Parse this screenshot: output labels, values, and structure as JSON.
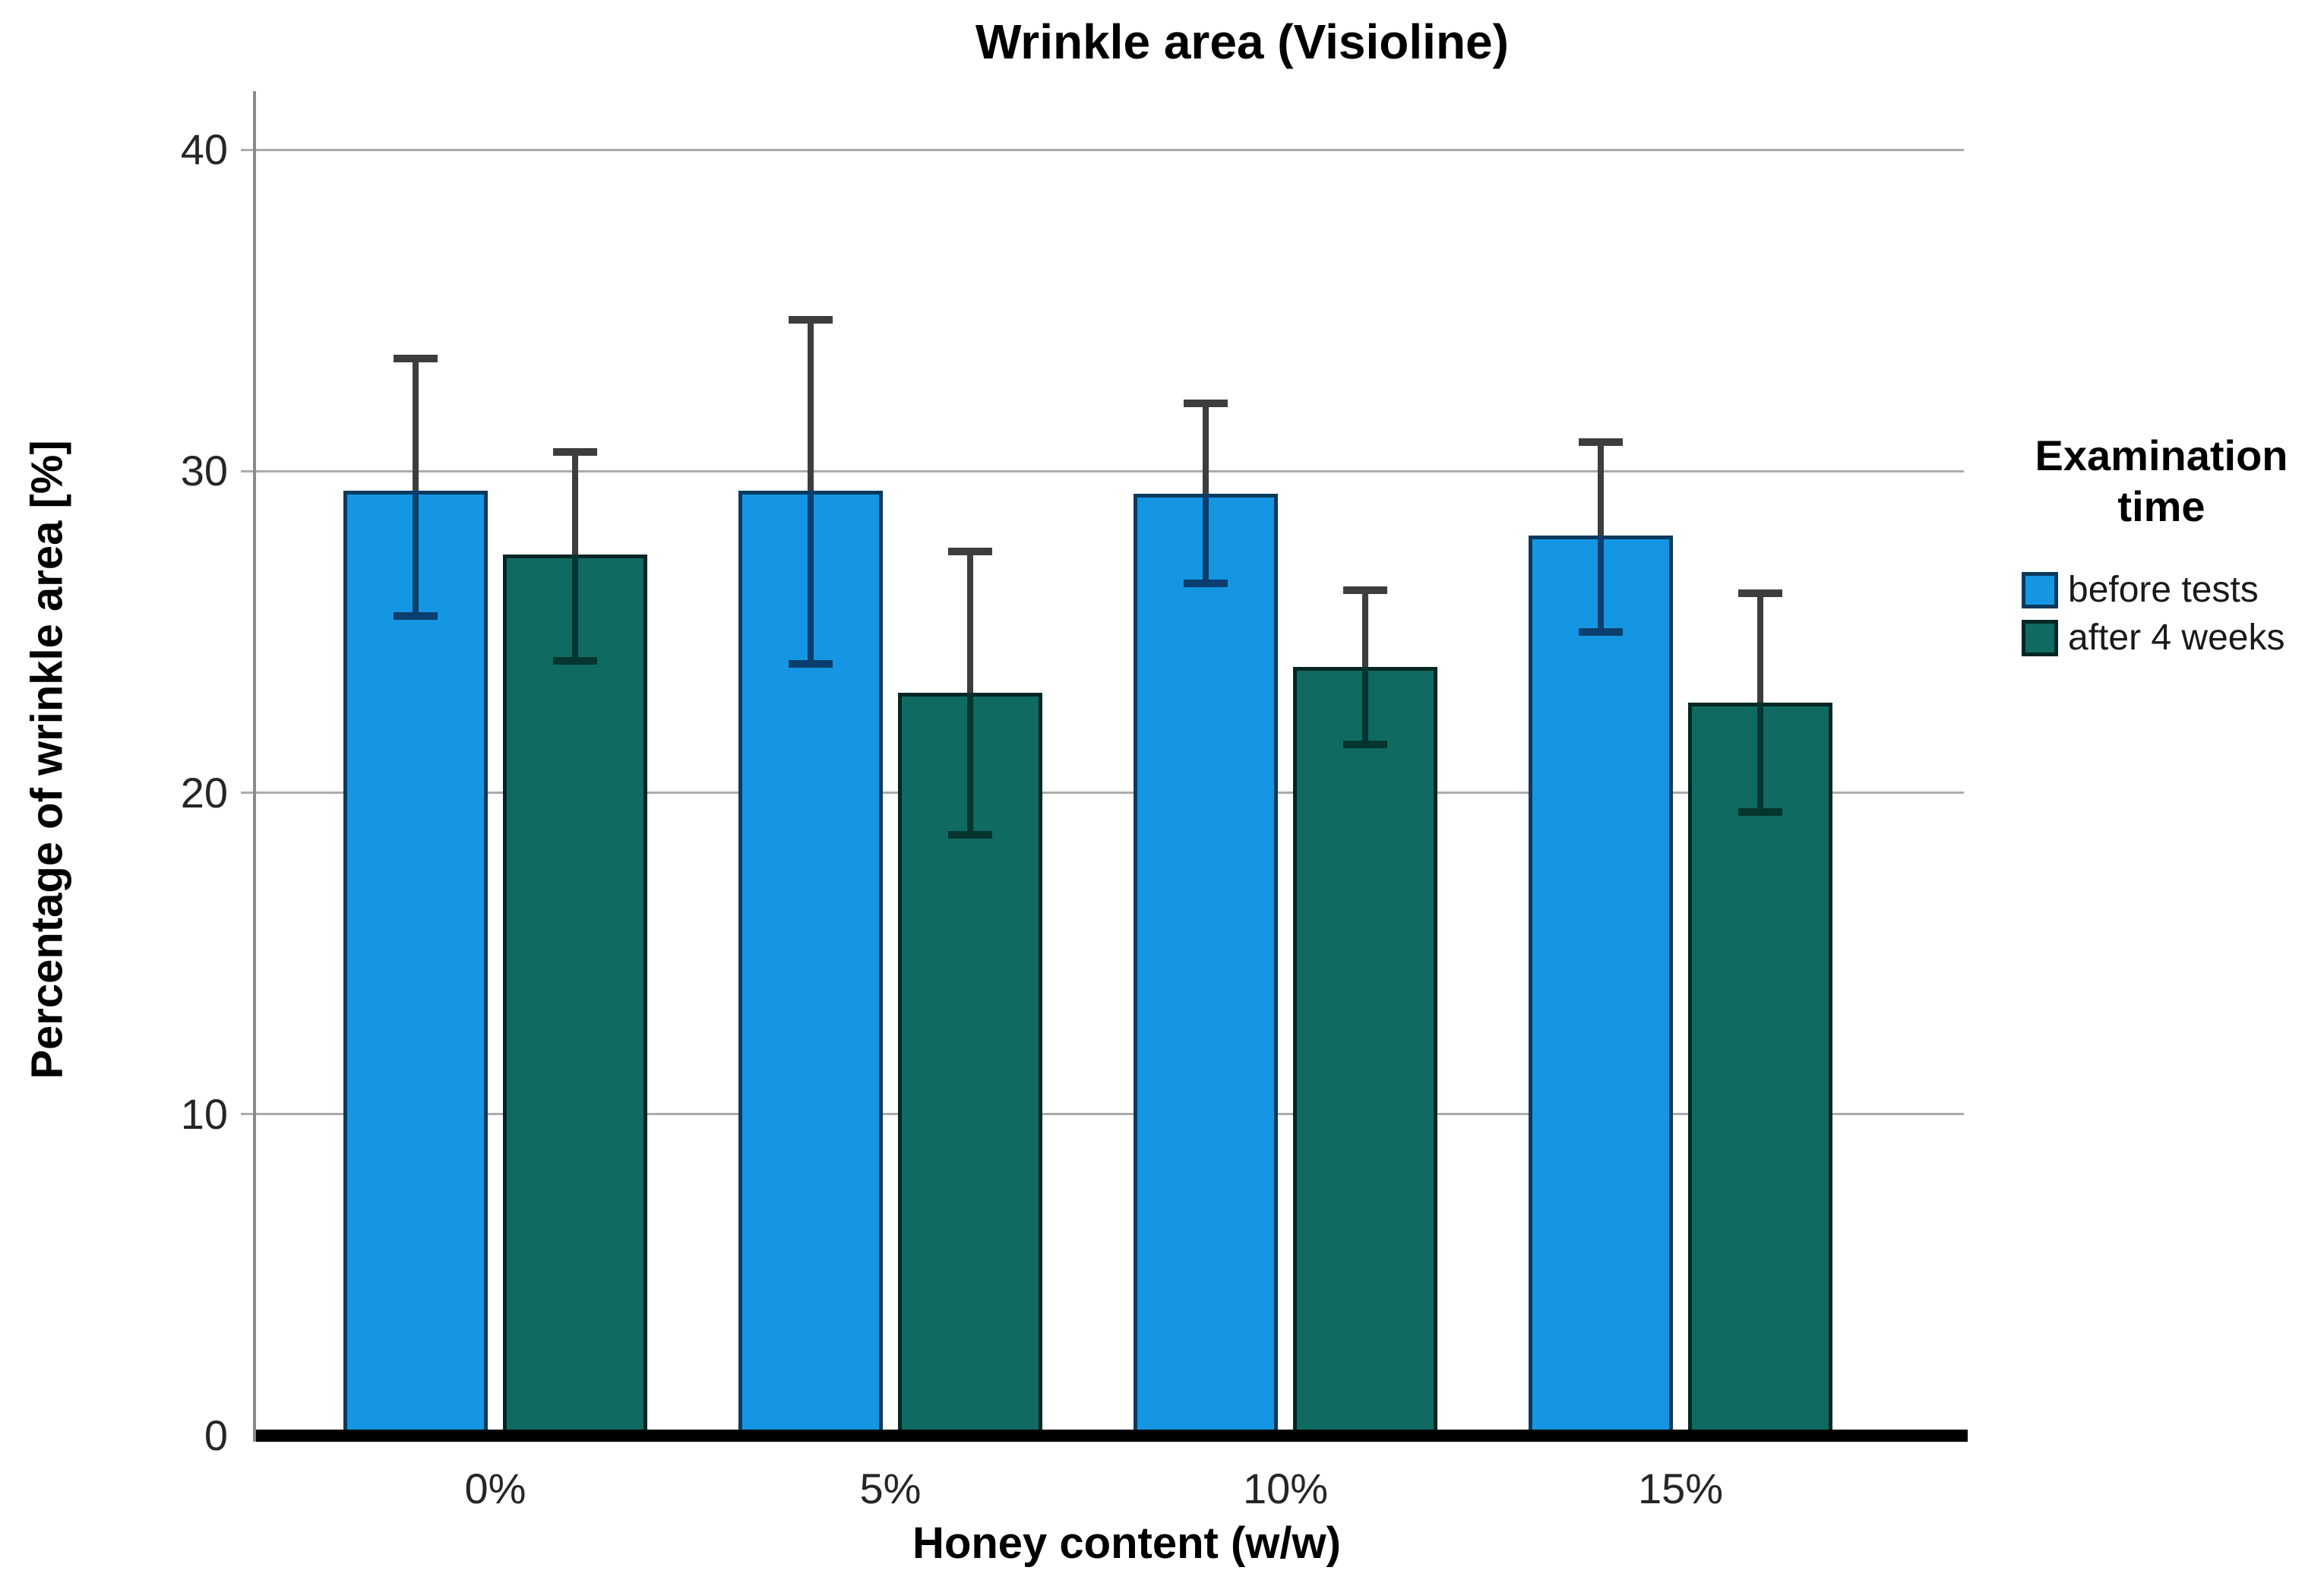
{
  "title": "Wrinkle area (Visioline)",
  "y_axis": {
    "label": "Percentage of wrinkle area [%]"
  },
  "x_axis": {
    "label": "Honey content (w/w)"
  },
  "legend": {
    "title_lines": [
      "Examination",
      "time"
    ],
    "items": [
      {
        "label": "before tests",
        "color": "#1496E3"
      },
      {
        "label": "after 4 weeks",
        "color": "#0F6B62"
      }
    ]
  },
  "colors": {
    "before_fill": "#1496E3",
    "before_border": "#0C3A5C",
    "before_inner_whisker": "#0B3E6E",
    "after_fill": "#0F6B62",
    "after_border": "#032723",
    "after_inner_whisker": "#04352F",
    "outer_whisker": "#3d3d3d",
    "gridline": "#ababab",
    "axis_line": "#8a8a8a",
    "baseline": "#000000"
  },
  "chart_data": {
    "type": "bar",
    "title": "Wrinkle area (Visioline)",
    "xlabel": "Honey content (w/w)",
    "ylabel": "Percentage of wrinkle area [%]",
    "ylim": [
      0,
      42
    ],
    "yticks": [
      0,
      10,
      20,
      30,
      40
    ],
    "grid": true,
    "legend_position": "right",
    "legend_title": "Examination time",
    "categories": [
      "0%",
      "5%",
      "10%",
      "15%"
    ],
    "series": [
      {
        "name": "before tests",
        "color": "#1496E3",
        "values": [
          29.4,
          29.4,
          29.3,
          28.0
        ],
        "error_high": [
          33.5,
          34.7,
          32.1,
          30.9
        ],
        "error_low": [
          25.5,
          24.0,
          26.5,
          25.0
        ]
      },
      {
        "name": "after 4 weeks",
        "color": "#0F6B62",
        "values": [
          27.4,
          23.1,
          23.9,
          22.8
        ],
        "error_high": [
          30.6,
          27.5,
          26.3,
          26.2
        ],
        "error_low": [
          24.1,
          18.7,
          21.5,
          19.4
        ]
      }
    ]
  }
}
